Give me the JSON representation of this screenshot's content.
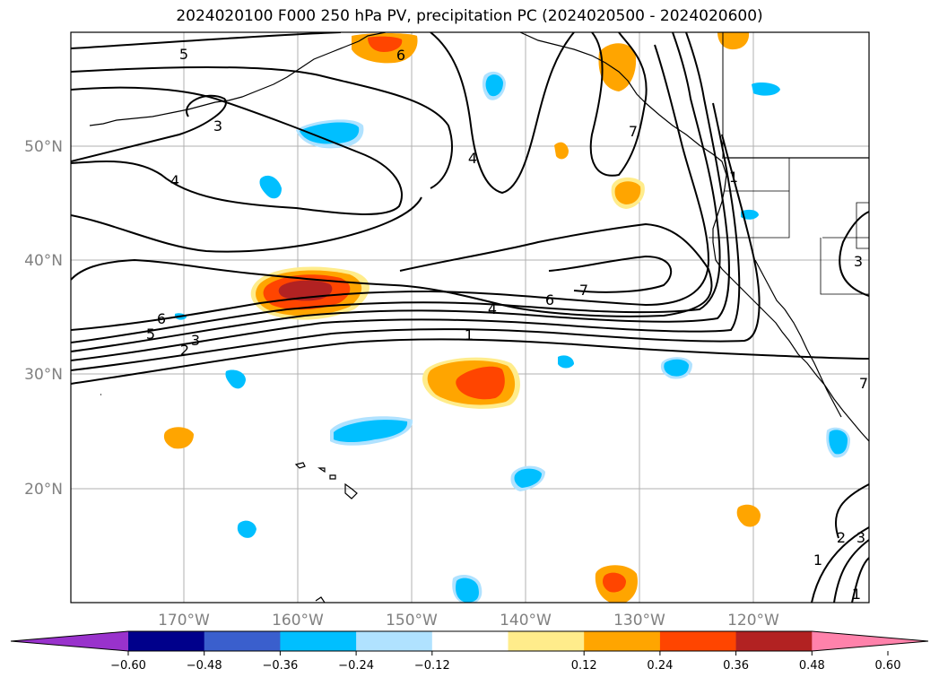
{
  "title": "2024020100 F000 250 hPa PV, precipitation PC (2024020500 - 2024020600)",
  "map": {
    "lat_labels": [
      "50°N",
      "40°N",
      "30°N",
      "20°N"
    ],
    "lon_labels": [
      "170°W",
      "160°W",
      "150°W",
      "140°W",
      "130°W",
      "120°W"
    ],
    "contour_labels": [
      "5",
      "3",
      "4",
      "6",
      "4",
      "6",
      "7",
      "4",
      "1",
      "6",
      "5",
      "2",
      "3",
      "7",
      "1",
      "3",
      "1",
      "2",
      "3",
      "1",
      "7"
    ]
  },
  "colorbar": {
    "ticks": [
      "−0.60",
      "−0.48",
      "−0.36",
      "−0.24",
      "−0.12",
      "0.12",
      "0.24",
      "0.36",
      "0.48",
      "0.60"
    ],
    "colors": [
      "#9932cc",
      "#00008b",
      "#3a5fcd",
      "#00bfff",
      "#b0e2ff",
      "#ffffff",
      "#ffec8b",
      "#ffa500",
      "#ff4500",
      "#b22222",
      "#ff82ab"
    ]
  }
}
